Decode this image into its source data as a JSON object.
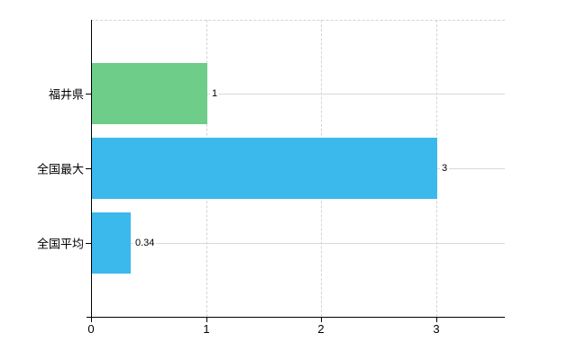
{
  "chart_data": {
    "type": "bar",
    "orientation": "horizontal",
    "categories": [
      "福井県",
      "全国最大",
      "全国平均"
    ],
    "values": [
      1,
      3,
      0.34
    ],
    "value_labels": [
      "1",
      "3",
      "0.34"
    ],
    "bar_colors": [
      "#6ecd88",
      "#3cb9ec",
      "#3cb9ec"
    ],
    "xticks": [
      0,
      1,
      2,
      3
    ],
    "xtick_labels": [
      "0",
      "1",
      "2",
      "3"
    ],
    "xlim": [
      0,
      3.6
    ],
    "grid": "on",
    "legend": "none",
    "colors": {
      "background": "#ffffff",
      "axis": "#000000",
      "grid_dashed": "#d4d4d4",
      "grid_solid": "#d9d9d9",
      "text": "#000000"
    }
  }
}
